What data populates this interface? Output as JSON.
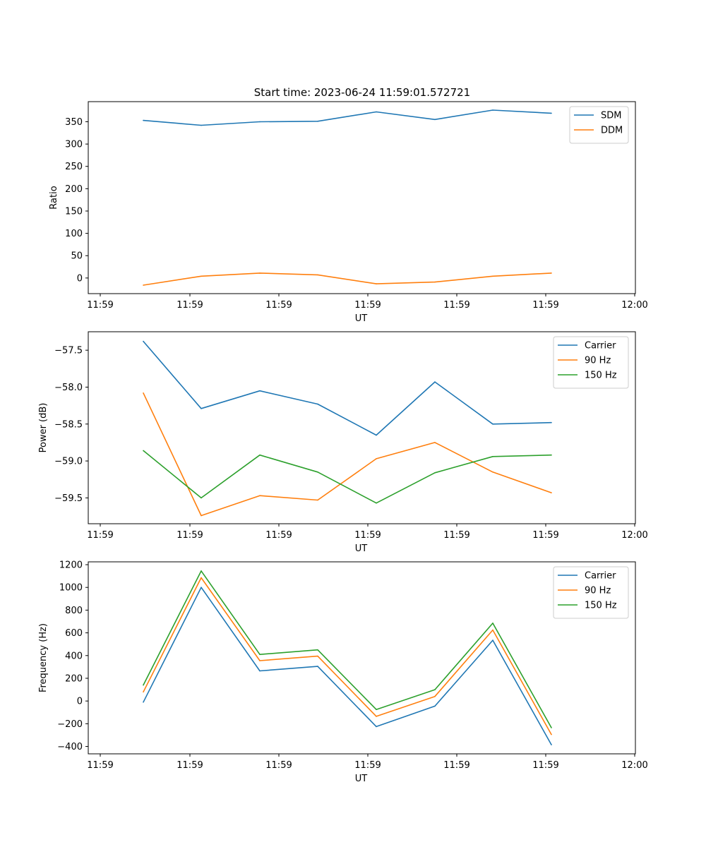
{
  "chart_data": [
    {
      "type": "line",
      "title": "Start time: 2023-06-24 11:59:01.572721",
      "xlabel": "UT",
      "ylabel": "Ratio",
      "x_tick_labels": [
        "11:59",
        "11:59",
        "11:59",
        "11:59",
        "11:59",
        "11:59",
        "12:00"
      ],
      "y_ticks": [
        0,
        50,
        100,
        150,
        200,
        250,
        300,
        350
      ],
      "ylim": [
        -35,
        395
      ],
      "x_points": 8,
      "legend_position": "top-right",
      "grid": false,
      "series": [
        {
          "name": "SDM",
          "color": "#1f77b4",
          "values": [
            353,
            342,
            350,
            351,
            372,
            355,
            376,
            369
          ]
        },
        {
          "name": "DDM",
          "color": "#ff7f0e",
          "values": [
            -16,
            4,
            11,
            7,
            -13,
            -9,
            4,
            11
          ]
        }
      ]
    },
    {
      "type": "line",
      "title": "",
      "xlabel": "UT",
      "ylabel": "Power (dB)",
      "x_tick_labels": [
        "11:59",
        "11:59",
        "11:59",
        "11:59",
        "11:59",
        "11:59",
        "12:00"
      ],
      "y_ticks": [
        -59.5,
        -59.0,
        -58.5,
        -58.0,
        -57.5
      ],
      "y_tick_labels": [
        "−59.5",
        "−59.0",
        "−58.5",
        "−58.0",
        "−57.5"
      ],
      "ylim": [
        -59.85,
        -57.25
      ],
      "x_points": 8,
      "legend_position": "top-right",
      "grid": false,
      "series": [
        {
          "name": "Carrier",
          "color": "#1f77b4",
          "values": [
            -57.38,
            -58.29,
            -58.05,
            -58.23,
            -58.65,
            -57.93,
            -58.5,
            -58.48
          ]
        },
        {
          "name": "90 Hz",
          "color": "#ff7f0e",
          "values": [
            -58.08,
            -59.74,
            -59.47,
            -59.53,
            -58.97,
            -58.75,
            -59.15,
            -59.43
          ]
        },
        {
          "name": "150 Hz",
          "color": "#2ca02c",
          "values": [
            -58.86,
            -59.5,
            -58.92,
            -59.15,
            -59.57,
            -59.16,
            -58.94,
            -58.92
          ]
        }
      ]
    },
    {
      "type": "line",
      "title": "",
      "xlabel": "UT",
      "ylabel": "Frequency (Hz)",
      "x_tick_labels": [
        "11:59",
        "11:59",
        "11:59",
        "11:59",
        "11:59",
        "11:59",
        "12:00"
      ],
      "y_ticks": [
        -400,
        -200,
        0,
        200,
        400,
        600,
        800,
        1000,
        1200
      ],
      "y_tick_labels": [
        "−400",
        "−200",
        "0",
        "200",
        "400",
        "600",
        "800",
        "1000",
        "1200"
      ],
      "ylim": [
        -465,
        1225
      ],
      "x_points": 8,
      "legend_position": "top-right",
      "grid": false,
      "series": [
        {
          "name": "Carrier",
          "color": "#1f77b4",
          "values": [
            -10,
            1000,
            265,
            305,
            -225,
            -45,
            535,
            -385
          ]
        },
        {
          "name": "90 Hz",
          "color": "#ff7f0e",
          "values": [
            80,
            1085,
            355,
            395,
            -135,
            40,
            625,
            -295
          ]
        },
        {
          "name": "150 Hz",
          "color": "#2ca02c",
          "values": [
            140,
            1145,
            410,
            450,
            -75,
            100,
            685,
            -235
          ]
        }
      ]
    }
  ]
}
